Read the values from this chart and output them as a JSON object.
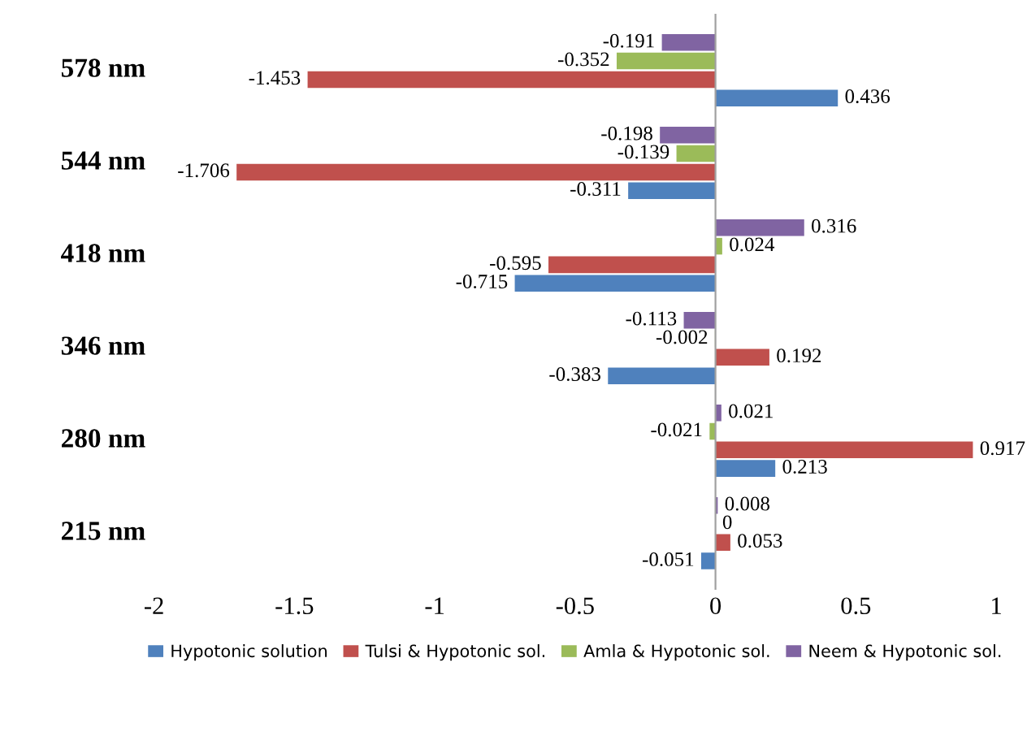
{
  "chart_data": {
    "type": "bar",
    "orientation": "horizontal",
    "categories": [
      "578 nm",
      "544 nm",
      "418 nm",
      "346 nm",
      "280 nm",
      "215 nm"
    ],
    "series": [
      {
        "name": "Hypotonic solution",
        "color": "#4f81bd",
        "values": [
          0.436,
          -0.311,
          -0.715,
          -0.383,
          0.213,
          -0.051
        ]
      },
      {
        "name": "Tulsi & Hypotonic sol.",
        "color": "#c0504d",
        "values": [
          -1.453,
          -1.706,
          -0.595,
          0.192,
          0.917,
          0.053
        ]
      },
      {
        "name": "Amla & Hypotonic sol.",
        "color": "#9bbb59",
        "values": [
          -0.352,
          -0.139,
          0.024,
          -0.002,
          -0.021,
          0
        ]
      },
      {
        "name": "Neem & Hypotonic sol.",
        "color": "#8064a2",
        "values": [
          -0.191,
          -0.198,
          0.316,
          -0.113,
          0.021,
          0.008
        ]
      }
    ],
    "xlim": [
      -2,
      1
    ],
    "xticks": [
      -2,
      -1.5,
      -1,
      -0.5,
      0,
      0.5,
      1
    ],
    "data_labels": true,
    "legend": "bottom"
  }
}
